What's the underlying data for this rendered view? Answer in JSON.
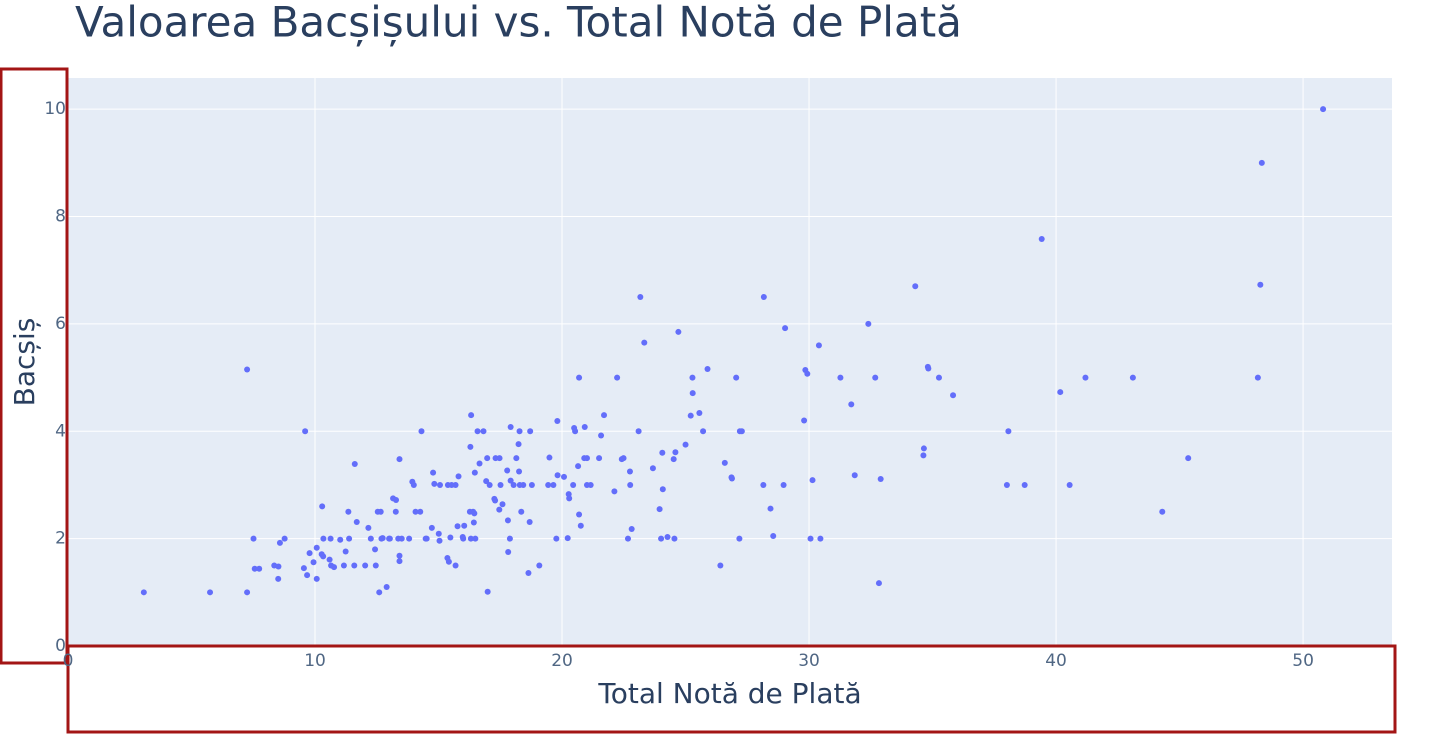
{
  "chart_data": {
    "type": "scatter",
    "title": "Valoarea Bacșișului vs. Total Notă de Plată",
    "x_label": "Total Notă de Plată",
    "y_label": "Bacșiș",
    "color": "#636efa",
    "grid": true,
    "xlim": [
      0,
      53.6
    ],
    "ylim": [
      0,
      10.58
    ],
    "xticks": [
      0,
      10,
      20,
      30,
      40,
      50
    ],
    "yticks": [
      0,
      2,
      4,
      6,
      8,
      10
    ],
    "x": [
      3.07,
      5.75,
      7.25,
      7.25,
      7.51,
      7.56,
      7.74,
      8.35,
      8.51,
      8.52,
      8.58,
      8.77,
      9.55,
      9.6,
      9.68,
      9.78,
      9.94,
      10.07,
      10.07,
      10.27,
      10.29,
      10.33,
      10.34,
      10.59,
      10.63,
      10.65,
      10.77,
      11.02,
      11.17,
      11.24,
      11.38,
      11.35,
      11.59,
      11.61,
      11.69,
      12.03,
      12.16,
      12.26,
      12.43,
      12.46,
      12.54,
      12.6,
      12.66,
      12.69,
      12.74,
      12.9,
      13.0,
      13.03,
      13.16,
      13.27,
      13.28,
      13.37,
      13.42,
      13.42,
      13.42,
      13.51,
      13.81,
      13.94,
      14.0,
      14.07,
      14.26,
      14.31,
      14.48,
      14.52,
      14.73,
      14.78,
      14.83,
      15.01,
      15.04,
      15.06,
      15.36,
      15.38,
      15.42,
      15.48,
      15.53,
      15.69,
      15.69,
      15.77,
      15.81,
      15.98,
      16.0,
      16.04,
      16.27,
      16.29,
      16.31,
      16.32,
      16.4,
      16.43,
      16.45,
      16.47,
      16.49,
      16.58,
      16.66,
      16.82,
      16.93,
      16.97,
      16.99,
      17.07,
      17.26,
      17.29,
      17.31,
      17.46,
      17.47,
      17.51,
      17.59,
      17.78,
      17.81,
      17.82,
      17.89,
      17.92,
      17.92,
      18.04,
      18.15,
      18.24,
      18.26,
      18.28,
      18.29,
      18.35,
      18.43,
      18.64,
      18.69,
      18.71,
      18.78,
      19.08,
      19.44,
      19.49,
      19.65,
      19.77,
      19.81,
      19.82,
      20.08,
      20.23,
      20.27,
      20.29,
      20.45,
      20.49,
      20.53,
      20.65,
      20.69,
      20.69,
      20.76,
      20.9,
      20.92,
      21.01,
      21.01,
      21.16,
      21.5,
      21.58,
      21.7,
      22.12,
      22.23,
      22.42,
      22.49,
      22.67,
      22.75,
      22.76,
      22.82,
      23.1,
      23.17,
      23.33,
      23.68,
      23.95,
      24.01,
      24.06,
      24.08,
      24.27,
      24.52,
      24.55,
      24.59,
      24.71,
      25.0,
      25.21,
      25.28,
      25.29,
      25.56,
      25.71,
      25.89,
      26.41,
      26.59,
      26.86,
      26.88,
      27.05,
      27.18,
      27.2,
      27.28,
      28.15,
      28.17,
      28.44,
      28.55,
      28.97,
      29.03,
      29.8,
      29.85,
      29.93,
      30.06,
      30.14,
      30.4,
      30.46,
      31.27,
      31.71,
      31.85,
      32.4,
      32.68,
      32.83,
      32.9,
      34.3,
      34.63,
      34.65,
      34.81,
      34.83,
      35.26,
      35.83,
      38.01,
      38.07,
      38.73,
      39.42,
      40.17,
      40.55,
      41.19,
      43.11,
      44.3,
      45.35,
      48.17,
      48.27,
      48.33,
      50.81
    ],
    "values": [
      1.0,
      1.0,
      1.0,
      5.15,
      2.0,
      1.44,
      1.44,
      1.5,
      1.25,
      1.48,
      1.92,
      2.0,
      1.45,
      4.0,
      1.32,
      1.73,
      1.56,
      1.83,
      1.25,
      1.71,
      2.6,
      1.67,
      2.0,
      1.61,
      2.0,
      1.5,
      1.47,
      1.98,
      1.5,
      1.76,
      2.0,
      2.5,
      1.5,
      3.39,
      2.31,
      1.5,
      2.2,
      2.0,
      1.8,
      1.5,
      2.5,
      1.0,
      2.5,
      2.0,
      2.01,
      1.1,
      2.0,
      2.0,
      2.75,
      2.5,
      2.72,
      2.0,
      1.58,
      3.48,
      1.68,
      2.0,
      2.0,
      3.06,
      3.0,
      2.5,
      2.5,
      4.0,
      2.0,
      2.0,
      2.2,
      3.23,
      3.02,
      2.09,
      1.96,
      3.0,
      1.64,
      3.0,
      1.57,
      2.02,
      3.0,
      3.0,
      1.5,
      2.23,
      3.16,
      2.03,
      2.0,
      2.24,
      2.5,
      3.71,
      2.0,
      4.3,
      2.5,
      2.3,
      2.47,
      3.23,
      2.0,
      4.0,
      3.4,
      4.0,
      3.07,
      3.5,
      1.01,
      3.0,
      2.74,
      2.71,
      3.5,
      2.54,
      3.5,
      3.0,
      2.64,
      3.27,
      2.34,
      1.75,
      2.0,
      4.08,
      3.08,
      3.0,
      3.5,
      3.76,
      3.25,
      4.0,
      3.0,
      2.5,
      3.0,
      1.36,
      2.31,
      4.0,
      3.0,
      1.5,
      3.0,
      3.51,
      3.0,
      2.0,
      4.19,
      3.18,
      3.15,
      2.01,
      2.83,
      2.75,
      3.0,
      4.06,
      4.0,
      3.35,
      5.0,
      2.45,
      2.24,
      3.5,
      4.08,
      3.5,
      3.0,
      3.0,
      3.5,
      3.92,
      4.3,
      2.88,
      5.0,
      3.48,
      3.5,
      2.0,
      3.25,
      3.0,
      2.18,
      4.0,
      6.5,
      5.65,
      3.31,
      2.55,
      2.0,
      3.6,
      2.92,
      2.03,
      3.48,
      2.0,
      3.61,
      5.85,
      3.75,
      4.29,
      5.0,
      4.71,
      4.34,
      4.0,
      5.16,
      1.5,
      3.41,
      3.14,
      3.12,
      5.0,
      2.0,
      4.0,
      4.0,
      3.0,
      6.5,
      2.56,
      2.05,
      3.0,
      5.92,
      4.2,
      5.14,
      5.07,
      2.0,
      3.09,
      5.6,
      2.0,
      5.0,
      4.5,
      3.18,
      6.0,
      5.0,
      1.17,
      3.11,
      6.7,
      3.55,
      3.68,
      5.2,
      5.17,
      5.0,
      4.67,
      3.0,
      4.0,
      3.0,
      7.58,
      4.73,
      3.0,
      5.0,
      5.0,
      2.5,
      3.5,
      5.0,
      6.73,
      9.0,
      10.0
    ]
  }
}
